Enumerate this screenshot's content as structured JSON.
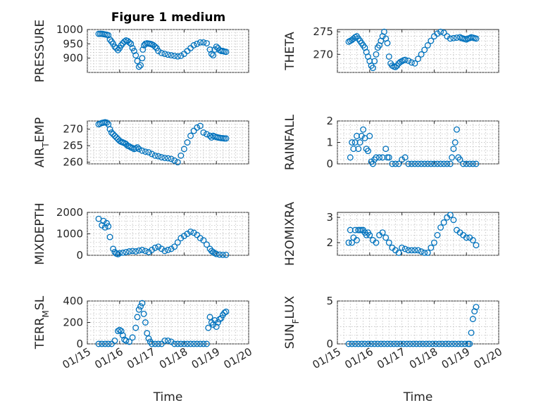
{
  "figure": {
    "title": "Figure 1 medium",
    "marker_color": "#0072bd"
  },
  "chart_data": [
    {
      "type": "scatter",
      "ylabel": "PRESSURE",
      "xlabel": "",
      "xlim": [
        0,
        5
      ],
      "ylim": [
        850,
        1000
      ],
      "yticks": [
        900,
        950,
        1000
      ],
      "x": [
        0.35,
        0.4,
        0.45,
        0.5,
        0.55,
        0.6,
        0.65,
        0.7,
        0.75,
        0.8,
        0.85,
        0.9,
        0.95,
        1.0,
        1.05,
        1.1,
        1.15,
        1.2,
        1.25,
        1.3,
        1.35,
        1.4,
        1.45,
        1.5,
        1.55,
        1.6,
        1.65,
        1.7,
        1.72,
        1.76,
        1.8,
        1.85,
        1.9,
        1.95,
        2.0,
        2.05,
        2.1,
        2.15,
        2.2,
        2.3,
        2.4,
        2.5,
        2.6,
        2.7,
        2.8,
        2.9,
        3.0,
        3.1,
        3.2,
        3.3,
        3.4,
        3.5,
        3.6,
        3.7,
        3.8,
        3.85,
        3.9,
        3.95,
        4.0,
        4.05,
        4.1,
        4.15,
        4.2,
        4.25,
        4.3
      ],
      "y": [
        985,
        985,
        985,
        984,
        983,
        982,
        980,
        965,
        958,
        950,
        940,
        935,
        928,
        935,
        945,
        952,
        958,
        962,
        960,
        955,
        950,
        935,
        925,
        910,
        890,
        870,
        875,
        900,
        930,
        945,
        950,
        952,
        951,
        950,
        948,
        945,
        940,
        935,
        925,
        918,
        915,
        912,
        910,
        908,
        906,
        908,
        915,
        925,
        935,
        945,
        950,
        955,
        955,
        952,
        930,
        915,
        910,
        930,
        940,
        935,
        928,
        925,
        925,
        923,
        922
      ],
      "xticks": [],
      "grid": true
    },
    {
      "type": "scatter",
      "ylabel": "THETA",
      "xlabel": "",
      "xlim": [
        0,
        5
      ],
      "ylim": [
        266,
        275.5
      ],
      "yticks": [
        270,
        275
      ],
      "x": [
        0.35,
        0.4,
        0.45,
        0.5,
        0.55,
        0.6,
        0.65,
        0.7,
        0.75,
        0.8,
        0.85,
        0.9,
        0.95,
        1.0,
        1.05,
        1.1,
        1.15,
        1.2,
        1.25,
        1.3,
        1.35,
        1.4,
        1.45,
        1.5,
        1.55,
        1.6,
        1.65,
        1.7,
        1.75,
        1.8,
        1.85,
        1.9,
        1.95,
        2.0,
        2.05,
        2.1,
        2.2,
        2.3,
        2.4,
        2.5,
        2.6,
        2.7,
        2.8,
        2.9,
        3.0,
        3.1,
        3.2,
        3.3,
        3.4,
        3.5,
        3.6,
        3.7,
        3.8,
        3.85,
        3.9,
        3.95,
        4.0,
        4.05,
        4.1,
        4.15,
        4.2,
        4.25,
        4.3
      ],
      "y": [
        272.8,
        273.0,
        273.2,
        273.5,
        273.8,
        274.0,
        273.5,
        273.0,
        272.5,
        272.0,
        271.5,
        270.5,
        269.5,
        268.5,
        267.5,
        267.0,
        268.5,
        270.0,
        271.5,
        272.0,
        273.0,
        274.0,
        275.0,
        273.5,
        272.5,
        269.5,
        268.0,
        267.5,
        267.3,
        267.2,
        267.5,
        268.0,
        268.3,
        268.5,
        268.7,
        268.8,
        268.6,
        268.2,
        268.0,
        269.0,
        270.0,
        271.0,
        272.0,
        273.0,
        274.0,
        274.6,
        275.0,
        274.8,
        274.0,
        273.5,
        273.6,
        273.7,
        273.8,
        273.6,
        273.5,
        273.4,
        273.3,
        273.5,
        273.6,
        273.8,
        273.7,
        273.6,
        273.5
      ],
      "xticks": [],
      "grid": true
    },
    {
      "type": "scatter",
      "ylabel": "AIR_TEMP",
      "xlabel": "",
      "xlim": [
        0,
        5
      ],
      "ylim": [
        259.5,
        272.5
      ],
      "yticks": [
        260,
        265,
        270
      ],
      "x": [
        0.35,
        0.4,
        0.45,
        0.5,
        0.55,
        0.6,
        0.65,
        0.7,
        0.75,
        0.8,
        0.85,
        0.9,
        0.95,
        1.0,
        1.05,
        1.1,
        1.15,
        1.2,
        1.25,
        1.3,
        1.35,
        1.4,
        1.45,
        1.5,
        1.55,
        1.6,
        1.7,
        1.8,
        1.9,
        2.0,
        2.1,
        2.2,
        2.3,
        2.4,
        2.5,
        2.6,
        2.7,
        2.8,
        2.9,
        3.0,
        3.1,
        3.2,
        3.3,
        3.4,
        3.5,
        3.6,
        3.7,
        3.8,
        3.85,
        3.9,
        3.95,
        4.0,
        4.05,
        4.1,
        4.15,
        4.2,
        4.25,
        4.3
      ],
      "y": [
        271.5,
        271.7,
        271.9,
        272.0,
        272.1,
        272.0,
        271.5,
        270.0,
        269.0,
        268.5,
        268.0,
        267.5,
        267.0,
        266.5,
        266.2,
        266.0,
        265.8,
        265.5,
        265.0,
        264.8,
        264.5,
        264.3,
        264.0,
        264.2,
        264.5,
        264.0,
        263.5,
        263.2,
        263.0,
        262.5,
        262.0,
        261.8,
        261.5,
        261.3,
        261.2,
        261.0,
        260.5,
        260.0,
        262.0,
        264.0,
        266.0,
        268.0,
        269.5,
        270.5,
        271.0,
        269.0,
        268.5,
        268.0,
        267.5,
        268.0,
        267.8,
        267.6,
        267.5,
        267.4,
        267.3,
        267.3,
        267.2,
        267.2
      ],
      "xticks": [],
      "grid": true
    },
    {
      "type": "scatter",
      "ylabel": "RAINFALL",
      "xlabel": "",
      "xlim": [
        0,
        5
      ],
      "ylim": [
        0,
        2
      ],
      "yticks": [
        0,
        1,
        2
      ],
      "x": [
        0.4,
        0.45,
        0.5,
        0.55,
        0.6,
        0.65,
        0.7,
        0.75,
        0.8,
        0.85,
        0.9,
        0.95,
        1.0,
        1.05,
        1.1,
        1.15,
        1.2,
        1.3,
        1.4,
        1.5,
        1.55,
        1.6,
        1.7,
        1.8,
        1.9,
        2.0,
        2.1,
        2.2,
        2.3,
        2.4,
        2.5,
        2.6,
        2.7,
        2.8,
        2.9,
        3.0,
        3.1,
        3.2,
        3.3,
        3.4,
        3.5,
        3.55,
        3.6,
        3.65,
        3.7,
        3.75,
        3.8,
        3.9,
        4.0,
        4.1,
        4.2,
        4.3
      ],
      "y": [
        0.3,
        1.0,
        0.7,
        1.0,
        1.3,
        0.7,
        1.0,
        1.3,
        1.6,
        1.2,
        0.7,
        0.6,
        1.3,
        0.1,
        0.0,
        0.2,
        0.3,
        0.3,
        0.3,
        0.7,
        0.3,
        0.3,
        0.0,
        0.0,
        0.0,
        0.2,
        0.3,
        0.0,
        0.0,
        0.0,
        0.0,
        0.0,
        0.0,
        0.0,
        0.0,
        0.0,
        0.0,
        0.0,
        0.0,
        0.0,
        0.0,
        0.3,
        0.7,
        1.0,
        1.6,
        0.3,
        0.2,
        0.0,
        0.0,
        0.0,
        0.0,
        0.0
      ],
      "xticks": [],
      "grid": true
    },
    {
      "type": "scatter",
      "ylabel": "MIXDEPTH",
      "xlabel": "",
      "xlim": [
        0,
        5
      ],
      "ylim": [
        0,
        2000
      ],
      "yticks": [
        0,
        1000,
        2000
      ],
      "x": [
        0.35,
        0.45,
        0.5,
        0.55,
        0.6,
        0.65,
        0.7,
        0.8,
        0.85,
        0.9,
        0.95,
        1.0,
        1.1,
        1.2,
        1.3,
        1.4,
        1.5,
        1.6,
        1.7,
        1.8,
        1.9,
        2.0,
        2.1,
        2.2,
        2.3,
        2.4,
        2.5,
        2.6,
        2.7,
        2.8,
        2.9,
        3.0,
        3.1,
        3.2,
        3.3,
        3.4,
        3.5,
        3.6,
        3.7,
        3.8,
        3.85,
        3.9,
        3.95,
        4.0,
        4.1,
        4.2,
        4.3
      ],
      "y": [
        1700,
        1400,
        1600,
        1300,
        1500,
        1350,
        850,
        300,
        150,
        80,
        50,
        100,
        120,
        150,
        180,
        200,
        180,
        220,
        250,
        200,
        150,
        250,
        350,
        400,
        300,
        200,
        250,
        300,
        400,
        600,
        800,
        900,
        1000,
        1100,
        1050,
        950,
        800,
        700,
        500,
        300,
        200,
        150,
        100,
        60,
        30,
        20,
        20
      ],
      "xticks": [],
      "grid": true
    },
    {
      "type": "scatter",
      "ylabel": "H2OMIXRA",
      "xlabel": "",
      "xlim": [
        0,
        5
      ],
      "ylim": [
        1.5,
        3.2
      ],
      "yticks": [
        2,
        3
      ],
      "x": [
        0.35,
        0.4,
        0.45,
        0.5,
        0.55,
        0.6,
        0.65,
        0.7,
        0.75,
        0.8,
        0.85,
        0.9,
        0.95,
        1.0,
        1.1,
        1.2,
        1.3,
        1.4,
        1.5,
        1.6,
        1.7,
        1.8,
        1.9,
        2.0,
        2.1,
        2.2,
        2.3,
        2.4,
        2.5,
        2.6,
        2.7,
        2.8,
        2.9,
        3.0,
        3.1,
        3.2,
        3.3,
        3.4,
        3.5,
        3.6,
        3.7,
        3.8,
        3.9,
        4.0,
        4.1,
        4.2,
        4.3
      ],
      "y": [
        2.0,
        2.5,
        2.0,
        2.2,
        2.5,
        2.1,
        2.5,
        2.5,
        2.5,
        2.5,
        2.4,
        2.3,
        2.4,
        2.3,
        2.1,
        2.0,
        2.3,
        2.4,
        2.2,
        2.0,
        1.8,
        1.7,
        1.6,
        1.8,
        1.75,
        1.7,
        1.7,
        1.7,
        1.7,
        1.65,
        1.6,
        1.6,
        1.8,
        2.0,
        2.3,
        2.6,
        2.8,
        3.0,
        3.1,
        2.9,
        2.5,
        2.4,
        2.3,
        2.2,
        2.2,
        2.1,
        1.9
      ],
      "xticks": [],
      "grid": true
    },
    {
      "type": "scatter",
      "ylabel": "TERR_MSL",
      "xlabel": "Time",
      "xlim": [
        0,
        5
      ],
      "ylim": [
        0,
        400
      ],
      "yticks": [
        0,
        200,
        400
      ],
      "x": [
        0.35,
        0.45,
        0.55,
        0.65,
        0.75,
        0.85,
        0.95,
        1.0,
        1.05,
        1.1,
        1.15,
        1.2,
        1.3,
        1.4,
        1.5,
        1.55,
        1.6,
        1.65,
        1.7,
        1.75,
        1.8,
        1.85,
        1.9,
        1.95,
        2.0,
        2.1,
        2.2,
        2.3,
        2.4,
        2.5,
        2.6,
        2.7,
        2.8,
        2.9,
        3.0,
        3.1,
        3.2,
        3.3,
        3.4,
        3.5,
        3.6,
        3.7,
        3.75,
        3.8,
        3.85,
        3.9,
        3.95,
        4.0,
        4.05,
        4.1,
        4.15,
        4.2,
        4.25,
        4.3
      ],
      "y": [
        0,
        0,
        0,
        0,
        0,
        30,
        120,
        130,
        120,
        80,
        40,
        30,
        20,
        60,
        150,
        250,
        320,
        350,
        380,
        280,
        200,
        100,
        50,
        20,
        0,
        0,
        0,
        0,
        30,
        30,
        20,
        0,
        0,
        0,
        0,
        0,
        0,
        0,
        0,
        0,
        0,
        0,
        150,
        250,
        200,
        180,
        220,
        160,
        200,
        230,
        240,
        270,
        290,
        300
      ],
      "xticks": [
        "01/15",
        "01/16",
        "01/17",
        "01/18",
        "01/19",
        "01/20"
      ],
      "grid": true
    },
    {
      "type": "scatter",
      "ylabel": "SUN_FLUX",
      "xlabel": "Time",
      "xlim": [
        0,
        5
      ],
      "ylim": [
        0,
        5
      ],
      "yticks": [
        0,
        5
      ],
      "x": [
        0.35,
        0.45,
        0.55,
        0.65,
        0.75,
        0.85,
        0.95,
        1.05,
        1.15,
        1.25,
        1.35,
        1.45,
        1.55,
        1.65,
        1.75,
        1.85,
        1.95,
        2.05,
        2.15,
        2.25,
        2.35,
        2.45,
        2.55,
        2.65,
        2.75,
        2.85,
        2.95,
        3.05,
        3.15,
        3.25,
        3.35,
        3.45,
        3.55,
        3.65,
        3.75,
        3.85,
        3.95,
        4.05,
        4.1,
        4.15,
        4.2,
        4.25,
        4.3
      ],
      "y": [
        0,
        0,
        0,
        0,
        0,
        0,
        0,
        0,
        0,
        0,
        0,
        0,
        0,
        0,
        0,
        0,
        0,
        0,
        0,
        0,
        0,
        0,
        0,
        0,
        0,
        0,
        0,
        0,
        0,
        0,
        0,
        0,
        0,
        0,
        0,
        0,
        0,
        0,
        0,
        1.3,
        2.9,
        3.8,
        4.3
      ],
      "xticks": [
        "01/15",
        "01/16",
        "01/17",
        "01/18",
        "01/19",
        "01/20"
      ],
      "grid": true
    }
  ]
}
